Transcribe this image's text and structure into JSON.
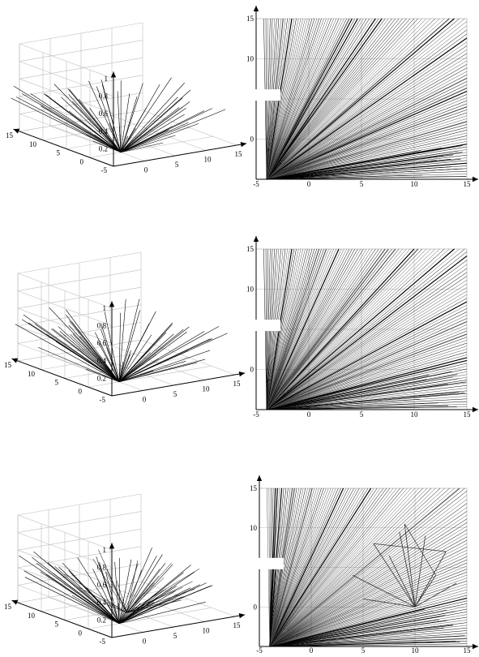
{
  "figure": {
    "panel_count": 6,
    "layout": "3 rows x 2 columns",
    "line_color": "#000000",
    "grid_color": "#bdbdbd"
  },
  "chart_data": [
    {
      "type": "line",
      "subtype": "3d-line-fan",
      "row": 1,
      "column": 1,
      "zticks": [
        "1",
        "0.8",
        "0.6",
        "0.4",
        "0.2"
      ],
      "yticks": [
        "15",
        "10",
        "5",
        "0",
        "-5"
      ],
      "xticks": [
        "0",
        "5",
        "10",
        "15"
      ],
      "zlim": [
        0,
        1
      ],
      "ylim": [
        -5,
        15
      ],
      "xlim": [
        -5,
        15
      ],
      "grid": true,
      "origin_xy": [
        0,
        0
      ],
      "line_count": 56,
      "secondary_fan": false
    },
    {
      "type": "line",
      "subtype": "2d-line-fan",
      "row": 1,
      "column": 2,
      "yticks": [
        "15",
        "10",
        "0"
      ],
      "xticks": [
        "-5",
        "0",
        "5",
        "10",
        "15"
      ],
      "xlim": [
        -5,
        15
      ],
      "ylim": [
        -5,
        15
      ],
      "grid": true,
      "origin": [
        -4,
        -5
      ],
      "line_count": 120,
      "secondary_fan": false
    },
    {
      "type": "line",
      "subtype": "3d-line-fan",
      "row": 2,
      "column": 1,
      "zticks": [
        "1",
        "0.8",
        "0.6",
        "0.4",
        "0.2"
      ],
      "yticks": [
        "15",
        "10",
        "5",
        "0",
        "-5"
      ],
      "xticks": [
        "0",
        "5",
        "10",
        "15"
      ],
      "zlim": [
        0,
        1
      ],
      "ylim": [
        -5,
        15
      ],
      "xlim": [
        -5,
        15
      ],
      "grid": true,
      "origin_xy": [
        0,
        0
      ],
      "line_count": 60,
      "secondary_fan": false
    },
    {
      "type": "line",
      "subtype": "2d-line-fan",
      "row": 2,
      "column": 2,
      "yticks": [
        "15",
        "10",
        "0"
      ],
      "xticks": [
        "-5",
        "0",
        "5",
        "10",
        "15"
      ],
      "xlim": [
        -5,
        15
      ],
      "ylim": [
        -5,
        15
      ],
      "grid": true,
      "origin": [
        -4,
        -5
      ],
      "line_count": 120,
      "secondary_fan": false
    },
    {
      "type": "line",
      "subtype": "3d-line-fan",
      "row": 3,
      "column": 1,
      "zticks": [
        "1",
        "0.8",
        "0.6",
        "0.4",
        "0.2"
      ],
      "yticks": [
        "15",
        "10",
        "5",
        "0",
        "-5"
      ],
      "xticks": [
        "0",
        "5",
        "10",
        "15"
      ],
      "zlim": [
        0,
        1
      ],
      "ylim": [
        -5,
        15
      ],
      "xlim": [
        -5,
        15
      ],
      "grid": true,
      "origin_xy": [
        0,
        0
      ],
      "line_count": 56,
      "secondary_fan": true
    },
    {
      "type": "line",
      "subtype": "2d-line-fan",
      "row": 3,
      "column": 2,
      "yticks": [
        "15",
        "10",
        "0"
      ],
      "xticks": [
        "-5",
        "0",
        "5",
        "10",
        "15"
      ],
      "xlim": [
        -5,
        15
      ],
      "ylim": [
        -5,
        15
      ],
      "grid": true,
      "origin": [
        -4,
        -5
      ],
      "line_count": 120,
      "secondary_fan": true,
      "secondary_origin": [
        10,
        0
      ]
    }
  ]
}
